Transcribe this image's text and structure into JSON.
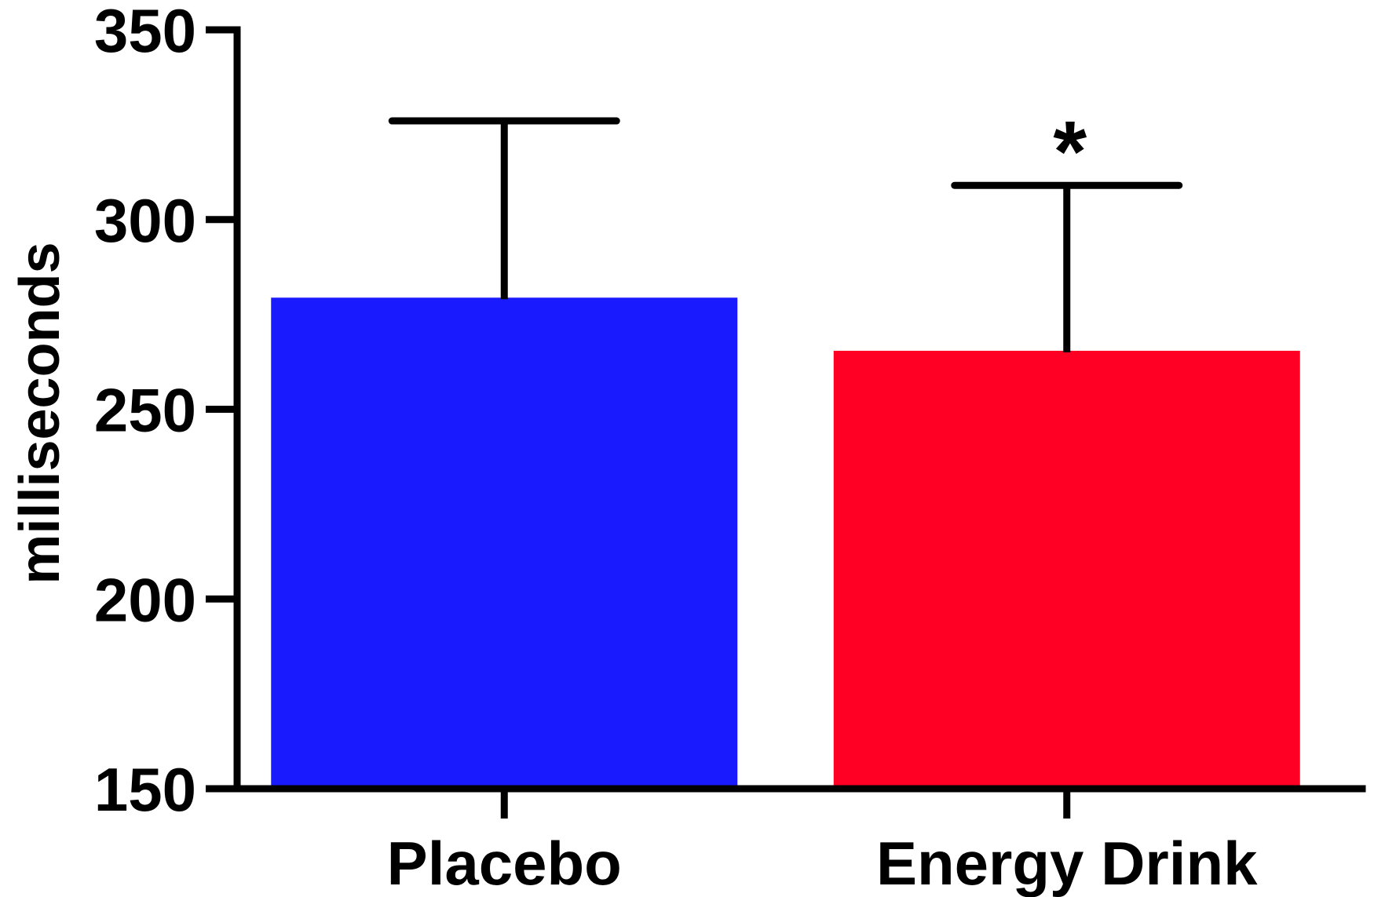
{
  "chart_data": {
    "type": "bar",
    "title": "",
    "xlabel": "",
    "ylabel": "milliseconds",
    "ylim": [
      150,
      350
    ],
    "yticks": [
      150,
      200,
      250,
      300,
      350
    ],
    "ytick_labels": [
      "150",
      "200",
      "250",
      "300",
      "350"
    ],
    "categories": [
      "Placebo",
      "Energy Drink"
    ],
    "values": [
      279,
      265
    ],
    "error_upper": [
      326,
      309
    ],
    "colors": [
      "#1a1aff",
      "#ff0024"
    ],
    "grid": false,
    "annotations": [
      {
        "category": "Energy Drink",
        "text": "*"
      }
    ]
  }
}
